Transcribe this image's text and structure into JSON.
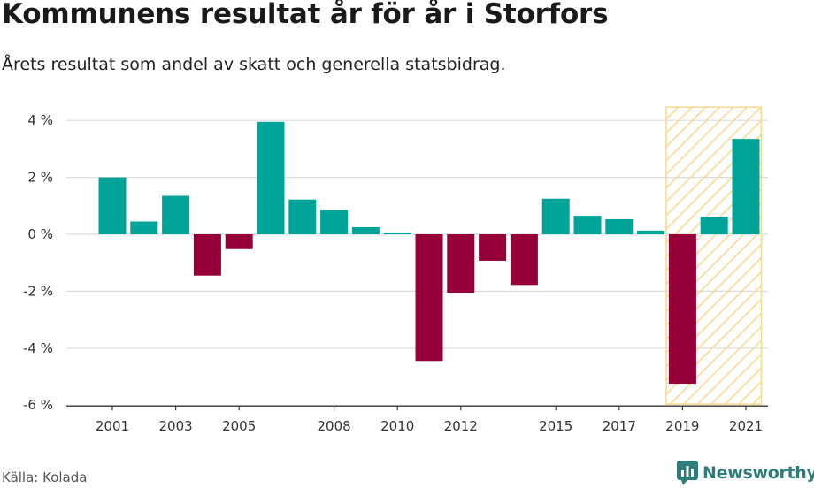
{
  "title": "Kommunens resultat år för år i Storfors",
  "subtitle": "Årets resultat som andel av skatt och generella statsbidrag.",
  "source": "Källa: Kolada",
  "brand": {
    "name": "Newsworthy",
    "icon": "newsworthy-logo-icon",
    "color": "#2e7d7a"
  },
  "colors": {
    "positive": "#00a398",
    "negative": "#960039",
    "highlight": "#f8d98a"
  },
  "chart_data": {
    "type": "bar",
    "categories": [
      "2001",
      "2002",
      "2003",
      "2004",
      "2005",
      "2006",
      "2007",
      "2008",
      "2009",
      "2010",
      "2011",
      "2012",
      "2013",
      "2014",
      "2015",
      "2016",
      "2017",
      "2018",
      "2019",
      "2020",
      "2021"
    ],
    "values": [
      2.0,
      0.45,
      1.35,
      -1.45,
      -0.52,
      3.95,
      1.22,
      0.85,
      0.25,
      0.03,
      -4.45,
      -2.05,
      -0.93,
      -1.78,
      1.25,
      0.65,
      0.53,
      0.13,
      -5.25,
      0.62,
      3.35
    ],
    "x_tick_labels": [
      "2001",
      "2003",
      "2005",
      "2008",
      "2010",
      "2012",
      "2015",
      "2017",
      "2019",
      "2021"
    ],
    "y_ticks": [
      4,
      2,
      0,
      -2,
      -4,
      -6
    ],
    "y_tick_labels": [
      "4 %",
      "2 %",
      "0 %",
      "-2 %",
      "-4 %",
      "-6 %"
    ],
    "ylim": [
      -6,
      4.5
    ],
    "highlight_range": [
      "2019",
      "2021"
    ],
    "grid": true
  }
}
